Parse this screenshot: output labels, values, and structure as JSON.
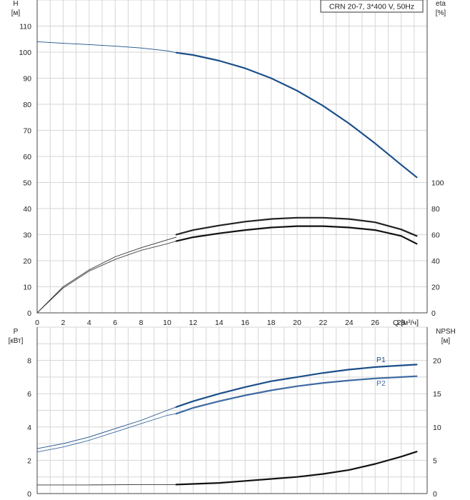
{
  "chart_data": [
    {
      "type": "line",
      "title": "CRN 20-7, 3*400 V, 50Hz",
      "xlabel": "Q [м³/ч]",
      "xlim": [
        0,
        30
      ],
      "x_ticks": [
        "0",
        "2",
        "4",
        "6",
        "8",
        "10",
        "12",
        "14",
        "16",
        "18",
        "20",
        "22",
        "24",
        "26",
        "28"
      ],
      "y_left_label": "H",
      "y_left_unit": "[м]",
      "ylim_left": [
        0,
        120
      ],
      "y_left_ticks": [
        "0",
        "10",
        "20",
        "30",
        "40",
        "50",
        "60",
        "70",
        "80",
        "90",
        "100",
        "110"
      ],
      "y_right_label": "eta",
      "y_right_unit": "[%]",
      "ylim_right": [
        0,
        240
      ],
      "y_right_ticks": [
        "0",
        "20",
        "40",
        "60",
        "80",
        "100"
      ],
      "grid": true,
      "series": [
        {
          "axis": "left",
          "color": "#1b4f8a",
          "x": [
            0,
            2,
            4,
            6,
            8,
            10,
            10.7
          ],
          "values": [
            104,
            103.4,
            102.9,
            102.3,
            101.6,
            100.5,
            99.8
          ]
        },
        {
          "axis": "left",
          "color": "#1b4f8a",
          "x": [
            10.7,
            12,
            14,
            16,
            18,
            20,
            22,
            24,
            26,
            28,
            29.2
          ],
          "values": [
            99.8,
            98.9,
            96.7,
            93.8,
            90.0,
            85.2,
            79.4,
            72.6,
            65.0,
            56.8,
            52.0
          ]
        },
        {
          "axis": "right",
          "color": "#333333",
          "x": [
            0,
            2,
            4,
            6,
            8,
            10,
            10.7
          ],
          "values": [
            0,
            20,
            33,
            43,
            50,
            56,
            58
          ]
        },
        {
          "axis": "right",
          "color": "#111111",
          "x": [
            10.7,
            12,
            14,
            16,
            18,
            20,
            22,
            24,
            26,
            28,
            29.2
          ],
          "values": [
            55,
            58,
            61,
            63.5,
            65.5,
            66.5,
            66.5,
            65.5,
            63.5,
            59,
            53
          ]
        },
        {
          "axis": "right",
          "color": "#444444",
          "x": [
            0,
            2,
            4,
            6,
            8,
            10,
            10.7
          ],
          "values": [
            0,
            19,
            32,
            41,
            48,
            53,
            55
          ]
        },
        {
          "axis": "right",
          "color": "#222222",
          "x": [
            10.7,
            12,
            14,
            16,
            18,
            20,
            22,
            24,
            26,
            28,
            29.2
          ],
          "values": [
            60,
            63.5,
            67,
            70,
            72,
            73,
            73,
            72,
            69.5,
            64,
            59
          ]
        }
      ]
    },
    {
      "type": "line",
      "xlim": [
        0,
        30
      ],
      "y_left_label": "P",
      "y_left_unit": "[кВт]",
      "ylim_left": [
        0,
        10
      ],
      "y_left_ticks": [
        "0",
        "2",
        "4",
        "6",
        "8"
      ],
      "y_right_label": "NPSH",
      "y_right_unit": "[м]",
      "ylim_right": [
        0,
        25
      ],
      "y_right_ticks": [
        "0",
        "5",
        "10",
        "15",
        "20"
      ],
      "grid": true,
      "series": [
        {
          "name": "P1",
          "axis": "left",
          "color": "#1b4f8a",
          "x": [
            0,
            2,
            4,
            6,
            8,
            10,
            10.7
          ],
          "values": [
            2.7,
            3.0,
            3.4,
            3.9,
            4.4,
            5.0,
            5.2
          ]
        },
        {
          "axis": "left",
          "color": "#1b4f8a",
          "x": [
            10.7,
            12,
            14,
            16,
            18,
            20,
            22,
            24,
            26,
            28,
            29.2
          ],
          "values": [
            5.2,
            5.55,
            6.0,
            6.4,
            6.75,
            7.0,
            7.25,
            7.45,
            7.6,
            7.7,
            7.75
          ]
        },
        {
          "name": "P2",
          "axis": "left",
          "color": "#3f6aa3",
          "x": [
            0,
            2,
            4,
            6,
            8,
            10,
            10.7
          ],
          "values": [
            2.5,
            2.8,
            3.2,
            3.7,
            4.2,
            4.7,
            4.8
          ]
        },
        {
          "axis": "left",
          "color": "#3f6aa3",
          "x": [
            10.7,
            12,
            14,
            16,
            18,
            20,
            22,
            24,
            26,
            28,
            29.2
          ],
          "values": [
            4.8,
            5.15,
            5.55,
            5.9,
            6.2,
            6.45,
            6.65,
            6.8,
            6.92,
            7.0,
            7.05
          ]
        },
        {
          "axis": "right",
          "color": "#333333",
          "x": [
            0,
            4,
            8,
            10.7
          ],
          "values": [
            1.3,
            1.3,
            1.35,
            1.35
          ]
        },
        {
          "axis": "right",
          "color": "#111111",
          "x": [
            10.7,
            14,
            16,
            18,
            20,
            22,
            24,
            26,
            28,
            29.2
          ],
          "values": [
            1.35,
            1.6,
            1.9,
            2.2,
            2.5,
            2.95,
            3.55,
            4.45,
            5.55,
            6.3
          ]
        }
      ]
    }
  ]
}
